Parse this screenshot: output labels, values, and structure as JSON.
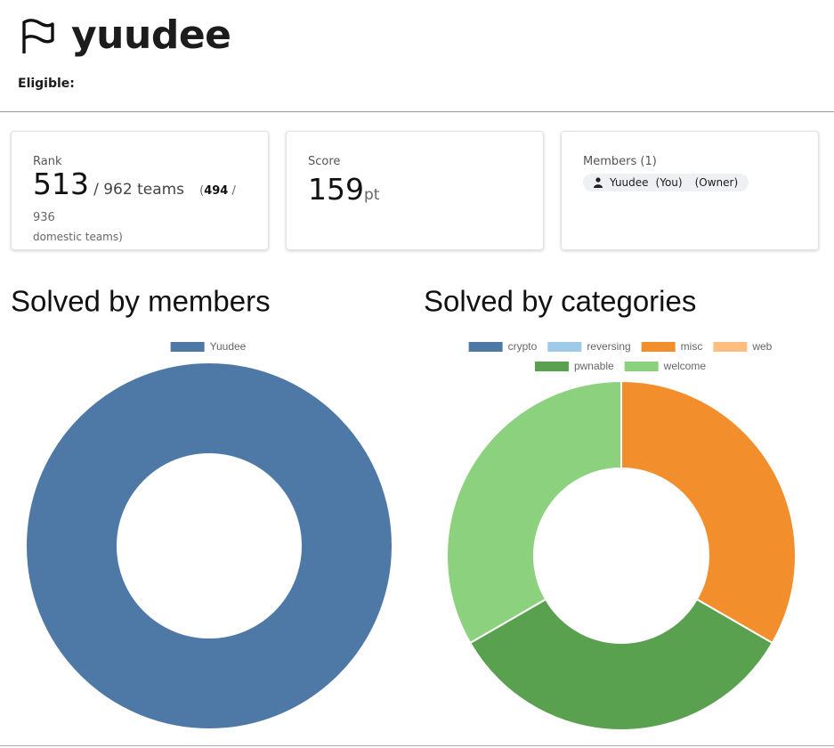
{
  "header": {
    "team_name": "yuudee",
    "eligible_label": "Eligible:"
  },
  "cards": {
    "rank": {
      "label": "Rank",
      "value": "513",
      "total": "/ 962 teams",
      "open": "(",
      "domestic_value": "494",
      "domestic_total": "/ 936",
      "domestic_suffix": "domestic teams",
      "close": ")"
    },
    "score": {
      "label": "Score",
      "value": "159",
      "unit": "pt"
    },
    "members": {
      "label": "Members (1)",
      "list": [
        {
          "name": "Yuudee",
          "you": "(You)",
          "role": "(Owner)"
        }
      ]
    }
  },
  "chart_data": [
    {
      "type": "doughnut",
      "title": "Solved by members",
      "categories": [
        "Yuudee"
      ],
      "values": [
        3
      ],
      "colors": [
        "#4e79a7"
      ]
    },
    {
      "type": "doughnut",
      "title": "Solved by categories",
      "categories": [
        "crypto",
        "reversing",
        "misc",
        "web",
        "pwnable",
        "welcome"
      ],
      "values": [
        0,
        0,
        1,
        0,
        1,
        1
      ],
      "colors": [
        "#4e79a7",
        "#a0cbe8",
        "#f28e2b",
        "#ffbe7d",
        "#59a14f",
        "#8cd17d"
      ]
    }
  ]
}
